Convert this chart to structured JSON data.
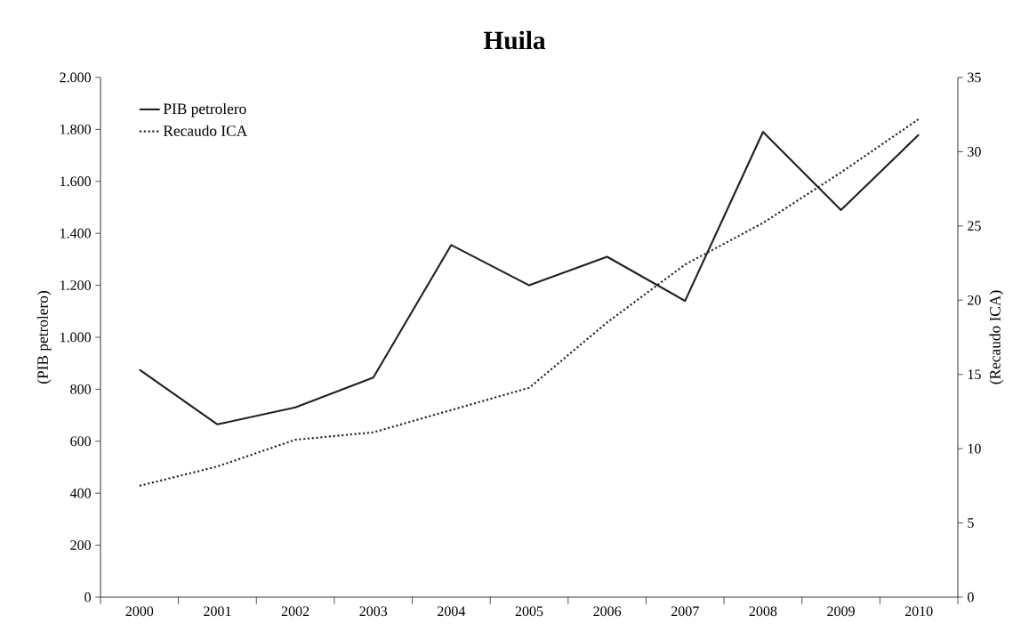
{
  "chart_data": {
    "type": "line",
    "title": "Huila",
    "ylabel": "(PIB petrolero)",
    "y2label": "(Recaudo ICA)",
    "categories": [
      "2000",
      "2001",
      "2002",
      "2003",
      "2004",
      "2005",
      "2006",
      "2007",
      "2008",
      "2009",
      "2010"
    ],
    "series": [
      {
        "name": "PIB petrolero",
        "color": "#231f20",
        "line_style": "solid",
        "values": [
          875,
          665,
          730,
          845,
          1355,
          1200,
          1310,
          1140,
          1790,
          1490,
          1780
        ]
      },
      {
        "name": "Recaudo ICA",
        "color": "#231f20",
        "line_style": "dotted",
        "axis": "y2",
        "values": [
          7.5,
          8.8,
          10.6,
          11.1,
          12.6,
          14.1,
          18.5,
          22.4,
          25.2,
          28.6,
          32.2
        ]
      }
    ],
    "ylim": [
      0,
      2000
    ],
    "yticks": [
      0,
      200,
      400,
      600,
      800,
      {
        "value": 1000,
        "label": "1.000"
      },
      {
        "value": 1200,
        "label": "1.200"
      },
      {
        "value": 1400,
        "label": "1.400"
      },
      {
        "value": 1600,
        "label": "1.600"
      },
      {
        "value": 1800,
        "label": "1.800"
      },
      {
        "value": 2000,
        "label": "2.000"
      }
    ],
    "y2lim": [
      0,
      35
    ],
    "y2ticks": [
      0,
      5,
      10,
      15,
      20,
      25,
      30,
      35
    ],
    "legend": "top left",
    "grid": false
  }
}
